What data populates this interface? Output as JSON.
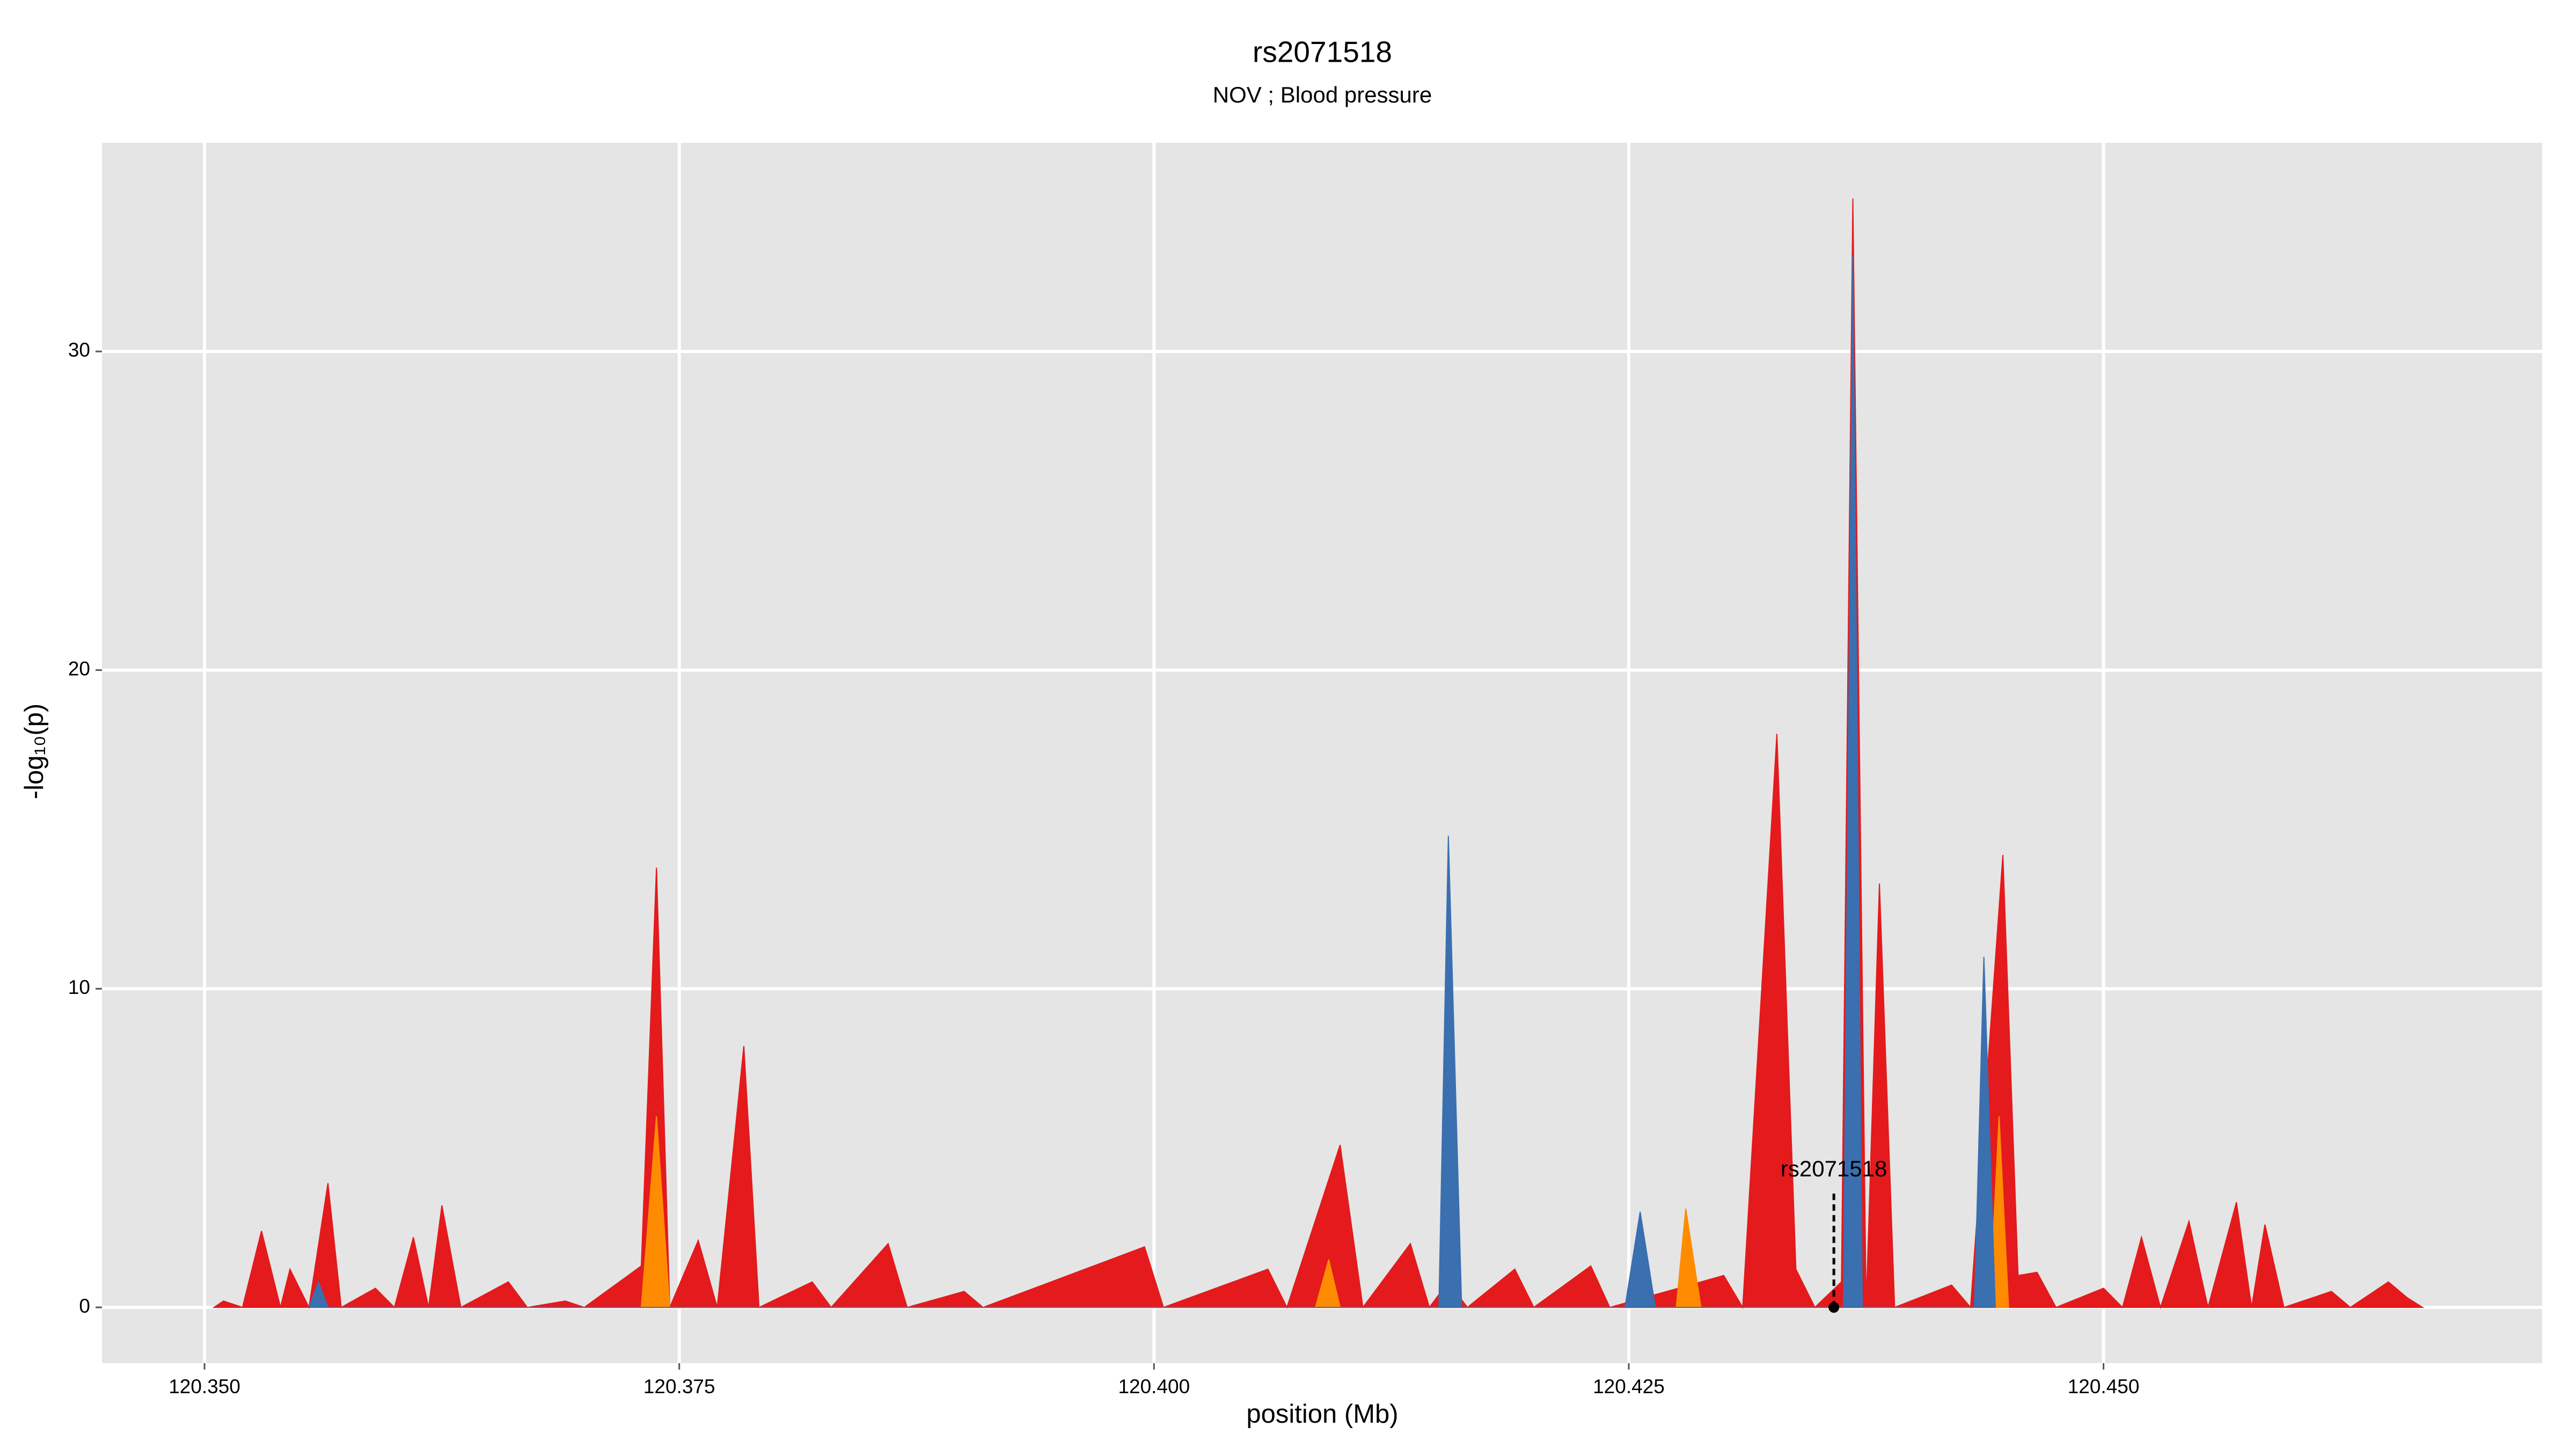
{
  "chart_data": {
    "type": "area",
    "title": "rs2071518",
    "subtitle": "NOV ; Blood pressure",
    "x_label": "position (Mb)",
    "y_label": "-log₁₀(p)",
    "xlim": [
      120.3446,
      120.4731
    ],
    "ylim": [
      -1.75,
      36.55
    ],
    "xticks": [
      {
        "value": 120.35,
        "label": "120.350"
      },
      {
        "value": 120.375,
        "label": "120.375"
      },
      {
        "value": 120.4,
        "label": "120.400"
      },
      {
        "value": 120.425,
        "label": "120.425"
      },
      {
        "value": 120.45,
        "label": "120.450"
      }
    ],
    "yticks": [
      0,
      10,
      20,
      30
    ],
    "grid": true,
    "series": [
      {
        "color": "#e41a1c",
        "x": [
          120.3505,
          120.351,
          120.352,
          120.353,
          120.354,
          120.3545,
          120.3555,
          120.3565,
          120.3572,
          120.359,
          120.36,
          120.361,
          120.3618,
          120.3625,
          120.3635,
          120.366,
          120.367,
          120.369,
          120.37,
          120.373,
          120.3738,
          120.3745,
          120.376,
          120.377,
          120.3784,
          120.3792,
          120.382,
          120.383,
          120.386,
          120.387,
          120.39,
          120.391,
          120.3995,
          120.4005,
          120.406,
          120.407,
          120.4098,
          120.411,
          120.4135,
          120.4145,
          120.4155,
          120.4165,
          120.419,
          120.42,
          120.423,
          120.424,
          120.43,
          120.431,
          120.4328,
          120.4338,
          120.4348,
          120.4362,
          120.4368,
          120.4375,
          120.4382,
          120.439,
          120.442,
          120.443,
          120.4447,
          120.4455,
          120.4465,
          120.4475,
          120.45,
          120.451,
          120.452,
          120.453,
          120.4545,
          120.4555,
          120.457,
          120.4578,
          120.4585,
          120.4595,
          120.462,
          120.463,
          120.465,
          120.466,
          120.4668
        ],
        "values": [
          0,
          0.2,
          0,
          2.4,
          0,
          1.2,
          0,
          3.9,
          0,
          0.6,
          0,
          2.2,
          0,
          3.2,
          0,
          0.8,
          0,
          0.2,
          0,
          1.3,
          13.8,
          0,
          2.1,
          0,
          8.2,
          0,
          0.8,
          0,
          2.0,
          0,
          0.5,
          0,
          1.9,
          0,
          1.2,
          0,
          5.1,
          0,
          2.0,
          0,
          0.8,
          0,
          1.2,
          0,
          1.3,
          0,
          1.0,
          0,
          18.0,
          1.2,
          0,
          0.8,
          34.8,
          0,
          13.3,
          0,
          0.7,
          0,
          14.2,
          1.0,
          1.1,
          0,
          0.6,
          0,
          2.2,
          0,
          2.7,
          0,
          3.3,
          0,
          2.6,
          0,
          0.5,
          0,
          0.8,
          0.3,
          0
        ]
      },
      {
        "color": "#ff8c00",
        "x": [
          120.373,
          120.3738,
          120.3745,
          120.4085,
          120.4092,
          120.4098,
          120.4275,
          120.428,
          120.4288,
          120.444,
          120.4445,
          120.445
        ],
        "values": [
          0,
          6,
          0,
          0,
          1.5,
          0,
          0,
          3.1,
          0,
          0,
          6,
          0
        ]
      },
      {
        "color": "#3a6fb0",
        "x": [
          120.3555,
          120.356,
          120.3565,
          120.415,
          120.4155,
          120.4162,
          120.4248,
          120.4256,
          120.4264,
          120.4363,
          120.4368,
          120.4373,
          120.4432,
          120.4437,
          120.4443
        ],
        "values": [
          0,
          0.8,
          0,
          0,
          14.8,
          0,
          0,
          3.0,
          0,
          0,
          33,
          0,
          0,
          11.0,
          0
        ]
      }
    ],
    "annotation": {
      "text": "rs2071518",
      "x": 120.4358,
      "y": 0
    }
  }
}
